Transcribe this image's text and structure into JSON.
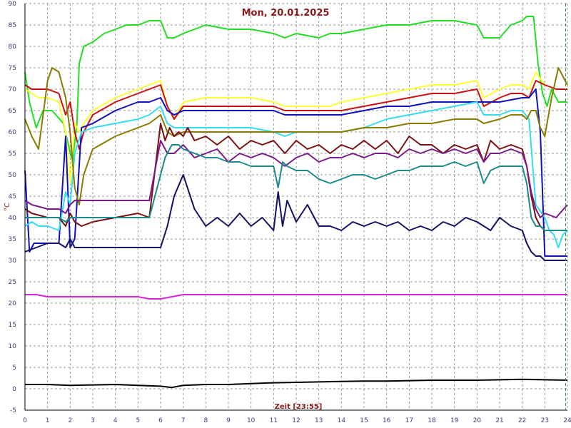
{
  "chart_data": {
    "type": "line",
    "title": "Mon, 20.01.2025",
    "xlabel": "Zeit [23:55]",
    "ylabel": "°C",
    "xlim": [
      0,
      24
    ],
    "ylim": [
      -5,
      90
    ],
    "xticks": [
      "0",
      "1",
      "2",
      "3",
      "4",
      "5",
      "6",
      "7",
      "8",
      "9",
      "10",
      "11",
      "12",
      "13",
      "14",
      "15",
      "16",
      "17",
      "18",
      "19",
      "20",
      "21",
      "22",
      "23",
      "24"
    ],
    "yticks": [
      "-5",
      "0",
      "5",
      "10",
      "15",
      "20",
      "25",
      "30",
      "35",
      "40",
      "45",
      "50",
      "55",
      "60",
      "65",
      "70",
      "75",
      "80",
      "85",
      "90"
    ],
    "grid": true,
    "colors": {
      "background": "#ffffff",
      "grid": "#9a9a9a",
      "axis": "#000000",
      "title": "#8b1a1a",
      "tick": "#3a3a7a",
      "cursor": "#2e8b2e"
    },
    "cursor_x": 23.92,
    "series": [
      {
        "color": "#22dd22",
        "x": [
          0,
          0.2,
          0.5,
          0.8,
          1.2,
          1.7,
          2.1,
          2.3,
          2.4,
          2.6,
          3,
          3.5,
          4,
          4.5,
          5,
          5.5,
          6,
          6.3,
          6.6,
          7,
          7.5,
          8,
          9,
          10,
          11,
          11.5,
          12,
          13,
          13.5,
          14,
          15,
          16,
          17,
          18,
          19,
          20,
          20.3,
          21,
          21.5,
          22,
          22.2,
          22.5,
          22.7,
          22.9,
          23.1,
          23.3,
          23.6,
          24
        ],
        "y": [
          74,
          67,
          61,
          65,
          65,
          62,
          53,
          62,
          76,
          80,
          81,
          83,
          84,
          85,
          85,
          86,
          86,
          82,
          82,
          83,
          84,
          85,
          84,
          84,
          83,
          82,
          83,
          82,
          83,
          83,
          84,
          85,
          85,
          86,
          86,
          85,
          82,
          82,
          85,
          86,
          87,
          87,
          76,
          69,
          66,
          70,
          67,
          67
        ]
      },
      {
        "color": "#ffff33",
        "x": [
          0,
          0.3,
          0.6,
          1,
          1.5,
          1.8,
          2,
          2.2,
          2.4,
          2.6,
          3,
          4,
          5,
          5.5,
          6,
          6.3,
          6.6,
          7,
          8,
          9,
          10,
          11,
          11.5,
          12,
          13,
          13.5,
          14,
          15,
          16,
          17,
          18,
          19,
          20,
          20.3,
          21,
          21.5,
          22,
          22.3,
          22.6,
          23,
          23.5,
          24
        ],
        "y": [
          70,
          69,
          68,
          68,
          67,
          60,
          48,
          62,
          60,
          62,
          65,
          68,
          70,
          71,
          72,
          66,
          63,
          67,
          68,
          68,
          68,
          67,
          66,
          66,
          66,
          66,
          67,
          68,
          69,
          70,
          71,
          71,
          72,
          68,
          70,
          71,
          71,
          70,
          74,
          71,
          70,
          70
        ]
      },
      {
        "color": "#cc1111",
        "x": [
          0,
          0.3,
          1,
          1.5,
          1.8,
          2,
          2.2,
          2.4,
          2.6,
          3,
          4,
          5,
          5.5,
          6,
          6.3,
          6.6,
          7,
          8,
          9,
          10,
          11,
          11.5,
          12,
          13,
          13.5,
          14,
          15,
          16,
          17,
          18,
          19,
          20,
          20.3,
          21,
          21.5,
          22,
          22.3,
          22.6,
          23,
          23.5,
          24
        ],
        "y": [
          71,
          70,
          70,
          69,
          64,
          67,
          60,
          56,
          60,
          64,
          67,
          69,
          70,
          71,
          66,
          63,
          66,
          66,
          66,
          66,
          66,
          65,
          65,
          65,
          65,
          65,
          66,
          67,
          68,
          69,
          69,
          70,
          66,
          68,
          69,
          69,
          68,
          72,
          71,
          70,
          70
        ]
      },
      {
        "color": "#1111bb",
        "x": [
          0,
          0.2,
          0.4,
          1,
          1.5,
          1.8,
          2,
          2.2,
          2.5,
          3,
          4,
          5,
          5.5,
          6,
          6.3,
          6.6,
          7,
          8,
          9,
          10,
          11,
          11.5,
          12,
          13,
          14,
          15,
          16,
          17,
          18,
          19,
          20,
          21,
          22,
          22.3,
          22.6,
          22.8,
          23,
          23.5,
          24
        ],
        "y": [
          51,
          32,
          34,
          34,
          34,
          59,
          33,
          35,
          61,
          62,
          65,
          67,
          67,
          68,
          65,
          64,
          65,
          65,
          65,
          65,
          65,
          64,
          64,
          64,
          64,
          65,
          66,
          66,
          67,
          67,
          67,
          67,
          68,
          68,
          70,
          60,
          31,
          31,
          31
        ]
      },
      {
        "color": "#33ddee",
        "x": [
          0,
          0.3,
          0.6,
          1,
          1.5,
          1.8,
          2,
          2.2,
          2.5,
          3,
          4,
          5,
          5.5,
          6,
          6.3,
          6.6,
          7,
          8,
          9,
          10,
          11,
          11.5,
          12,
          13,
          14,
          15,
          16,
          17,
          18,
          19,
          20,
          20.3,
          21,
          21.5,
          22,
          22.3,
          22.6,
          23,
          23.2,
          23.4,
          23.6,
          23.8,
          24
        ],
        "y": [
          38,
          39,
          38,
          38,
          37,
          46,
          43,
          55,
          60,
          61,
          62,
          63,
          64,
          66,
          62,
          61,
          61,
          61,
          61,
          61,
          60,
          59,
          60,
          60,
          60,
          61,
          63,
          64,
          65,
          66,
          67,
          64,
          64,
          65,
          65,
          63,
          43,
          40,
          37,
          36,
          33,
          36,
          37
        ]
      },
      {
        "color": "#8b7a00",
        "x": [
          0,
          0.3,
          0.6,
          1,
          1.2,
          1.5,
          1.8,
          2,
          2.2,
          2.4,
          2.6,
          3,
          4,
          5,
          5.5,
          6,
          6.3,
          6.6,
          7,
          8,
          9,
          10,
          11,
          12,
          13,
          14,
          15,
          16,
          17,
          18,
          19,
          20,
          20.3,
          21,
          21.5,
          22,
          22.2,
          22.4,
          22.6,
          22.8,
          23,
          23.3,
          23.6,
          24
        ],
        "y": [
          63,
          59,
          56,
          72,
          75,
          74,
          68,
          60,
          47,
          43,
          50,
          56,
          59,
          61,
          62,
          64,
          60,
          59,
          60,
          60,
          60,
          60,
          60,
          60,
          60,
          60,
          61,
          61,
          62,
          62,
          63,
          63,
          62,
          63,
          64,
          64,
          63,
          65,
          65,
          61,
          59,
          68,
          75,
          71
        ]
      },
      {
        "color": "#7a1111",
        "x": [
          0,
          0.3,
          1,
          1.5,
          1.8,
          2,
          2.2,
          2.5,
          3,
          4,
          5,
          5.5,
          6,
          6.2,
          6.4,
          6.6,
          6.8,
          7,
          7.2,
          7.5,
          8,
          8.5,
          9,
          9.5,
          10,
          10.5,
          11,
          11.5,
          12,
          12.5,
          13,
          13.5,
          14,
          14.5,
          15,
          15.5,
          16,
          16.5,
          17,
          17.5,
          18,
          18.5,
          19,
          19.5,
          20,
          20.3,
          20.6,
          21,
          21.5,
          22,
          22.2,
          22.4,
          22.6,
          22.8,
          23,
          23.5,
          24
        ],
        "y": [
          42,
          41,
          40,
          40,
          38,
          41,
          39,
          38,
          39,
          40,
          41,
          40,
          62,
          58,
          61,
          59,
          60,
          59,
          61,
          58,
          59,
          57,
          59,
          56,
          58,
          57,
          58,
          55,
          58,
          56,
          57,
          55,
          57,
          56,
          58,
          56,
          58,
          55,
          59,
          57,
          57,
          55,
          57,
          56,
          57,
          53,
          58,
          56,
          57,
          56,
          52,
          45,
          40,
          38,
          37,
          37,
          37
        ]
      },
      {
        "color": "#7a1a8a",
        "x": [
          0,
          0.3,
          1,
          1.5,
          1.8,
          2,
          2.2,
          2.5,
          3,
          4,
          5,
          5.5,
          6,
          6.3,
          6.6,
          7,
          7.5,
          8,
          8.5,
          9,
          9.5,
          10,
          10.5,
          11,
          11.5,
          12,
          12.5,
          13,
          13.5,
          14,
          14.5,
          15,
          15.5,
          16,
          16.5,
          17,
          17.5,
          18,
          18.5,
          19,
          19.5,
          20,
          20.3,
          20.6,
          21,
          21.5,
          22,
          22.2,
          22.4,
          22.6,
          22.8,
          23,
          23.5,
          24
        ],
        "y": [
          44,
          43,
          42,
          42,
          41,
          43,
          44,
          44,
          44,
          44,
          44,
          44,
          58,
          55,
          55,
          57,
          54,
          55,
          56,
          53,
          55,
          54,
          55,
          54,
          52,
          54,
          55,
          53,
          54,
          54,
          55,
          54,
          55,
          55,
          54,
          56,
          55,
          56,
          55,
          56,
          55,
          56,
          53,
          55,
          55,
          56,
          55,
          52,
          46,
          42,
          40,
          41,
          40,
          43
        ]
      },
      {
        "color": "#1a8a8a",
        "x": [
          0,
          0.3,
          1,
          1.5,
          1.8,
          2,
          2.2,
          2.5,
          3,
          4,
          5,
          5.5,
          6,
          6.2,
          6.5,
          6.8,
          7,
          7.5,
          8,
          8.5,
          9,
          9.5,
          10,
          10.5,
          11,
          11.2,
          11.4,
          11.6,
          12,
          12.5,
          13,
          13.5,
          14,
          14.5,
          15,
          15.5,
          16,
          16.5,
          17,
          17.5,
          18,
          18.5,
          19,
          19.5,
          20,
          20.3,
          20.6,
          21,
          21.5,
          22,
          22.2,
          22.4,
          22.6,
          22.8,
          23,
          23.5,
          24
        ],
        "y": [
          40,
          40,
          40,
          40,
          39,
          40,
          40,
          40,
          40,
          40,
          40,
          40,
          50,
          54,
          57,
          57,
          56,
          55,
          54,
          54,
          53,
          53,
          52,
          52,
          52,
          47,
          53,
          52,
          51,
          51,
          49,
          48,
          49,
          50,
          50,
          49,
          50,
          51,
          51,
          52,
          52,
          52,
          53,
          52,
          53,
          48,
          51,
          52,
          52,
          52,
          48,
          40,
          38,
          38,
          37,
          37,
          37
        ]
      },
      {
        "color": "#111166",
        "x": [
          0,
          0.5,
          1,
          1.5,
          1.8,
          2,
          2.2,
          2.5,
          3,
          4,
          5,
          5.5,
          6,
          6.3,
          6.6,
          7,
          7.5,
          8,
          8.5,
          9,
          9.5,
          10,
          10.5,
          11,
          11.2,
          11.4,
          11.6,
          12,
          12.5,
          13,
          13.5,
          14,
          14.5,
          15,
          15.5,
          16,
          16.5,
          17,
          17.5,
          18,
          18.5,
          19,
          19.5,
          20,
          20.3,
          20.6,
          21,
          21.5,
          22,
          22.2,
          22.4,
          22.6,
          22.8,
          23,
          23.5,
          24
        ],
        "y": [
          32,
          33,
          34,
          34,
          33,
          35,
          33,
          33,
          33,
          33,
          33,
          33,
          33,
          38,
          45,
          50,
          42,
          38,
          40,
          38,
          41,
          38,
          40,
          37,
          46,
          38,
          44,
          39,
          43,
          38,
          38,
          37,
          39,
          38,
          39,
          38,
          39,
          37,
          38,
          37,
          39,
          38,
          40,
          39,
          38,
          37,
          40,
          38,
          37,
          34,
          32,
          31,
          31,
          30,
          30,
          30
        ]
      },
      {
        "color": "#dd22dd",
        "x": [
          0,
          0.5,
          1,
          2,
          3,
          4,
          5,
          5.5,
          6,
          6.5,
          7,
          8,
          9,
          10,
          11,
          12,
          13,
          14,
          15,
          16,
          17,
          18,
          19,
          20,
          21,
          22,
          23,
          24
        ],
        "y": [
          22,
          22,
          21.5,
          21.5,
          21.5,
          21.5,
          21.5,
          21,
          21,
          21.5,
          22,
          22,
          22,
          22,
          22,
          22,
          22,
          22,
          22,
          22,
          22,
          22,
          22,
          22,
          22,
          22,
          22,
          22
        ]
      },
      {
        "color": "#000000",
        "x": [
          0,
          1,
          2,
          3,
          4,
          5,
          6,
          6.5,
          7,
          8,
          9,
          10,
          11,
          12,
          13,
          14,
          15,
          16,
          17,
          18,
          19,
          20,
          21,
          22,
          23,
          24
        ],
        "y": [
          1,
          1,
          0.8,
          0.9,
          1,
          0.8,
          0.6,
          0.3,
          0.8,
          1,
          1,
          1.2,
          1.4,
          1.5,
          1.6,
          1.7,
          1.8,
          1.8,
          1.9,
          2,
          2,
          2,
          2.1,
          2.2,
          2.1,
          2
        ]
      }
    ]
  }
}
